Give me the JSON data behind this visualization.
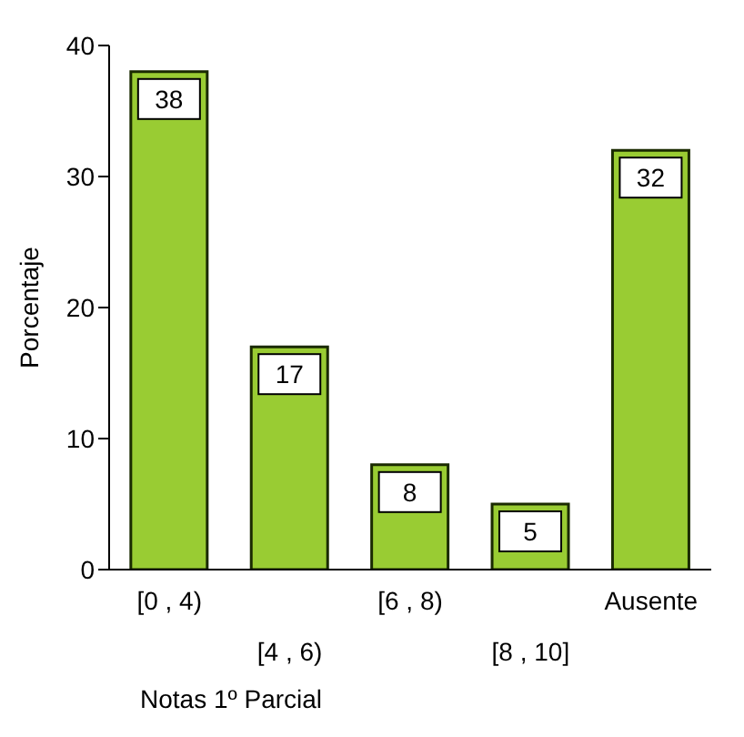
{
  "chart_data": {
    "type": "bar",
    "categories": [
      "[0 , 4)",
      "[4 , 6)",
      "[6 , 8)",
      "[8 , 10]",
      "Ausente"
    ],
    "values": [
      38,
      17,
      8,
      5,
      32
    ],
    "color": "#99cc33",
    "ylim": [
      0,
      40
    ],
    "yticks": [
      0,
      10,
      20,
      30,
      40
    ],
    "ylabel": "Porcentaje",
    "xlabel": "Notas 1º Parcial",
    "data_labels": true,
    "grid": false,
    "legend": false
  }
}
